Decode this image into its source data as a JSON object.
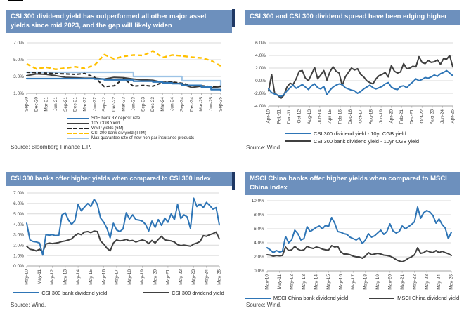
{
  "colors": {
    "header_bg": "#6d90bd",
    "header_text": "#ffffff",
    "grid": "#d9d9d9",
    "axis_line": "#a6a6a6",
    "axis_text": "#404040",
    "blue": "#2e75b6",
    "dark_gray": "#404040",
    "black": "#262626",
    "yellow": "#ffc000",
    "light_blue": "#9dc3e6",
    "edge_mark": "#1f3864"
  },
  "panels": [
    {
      "title": "CSI 300 dividend yield has outperformed all other major asset yields since mid 2023, and the gap will likely widen",
      "source": "Source: Bloomberg Finance L.P.",
      "chart_data": {
        "type": "line",
        "grid": true,
        "legend_position": "bottom-vertical",
        "ylim": [
          1,
          7
        ],
        "yticks": [
          {
            "v": 1,
            "label": "1.0%"
          },
          {
            "v": 3,
            "label": "3.0%"
          },
          {
            "v": 5,
            "label": "5.0%"
          },
          {
            "v": 7,
            "label": "7.0%"
          }
        ],
        "x_labels": [
          "Sep-20",
          "Dec-20",
          "Mar-21",
          "Jun-21",
          "Sep-21",
          "Dec-21",
          "Mar-22",
          "Jun-22",
          "Sep-22",
          "Dec-22",
          "Mar-23",
          "Jun-23",
          "Sep-23",
          "Dec-23",
          "Mar-24",
          "Jun-24",
          "Sep-24",
          "Dec-24",
          "Mar-25",
          "Jun-25",
          "Sep-25"
        ],
        "series": [
          {
            "name": "SOE bank 3Y deposit rate",
            "color": "#2e75b6",
            "width": 2.2,
            "dash": null,
            "step": true,
            "z": 4,
            "values": [
              2.75,
              2.75,
              2.75,
              2.75,
              2.75,
              2.75,
              2.75,
              2.7,
              2.6,
              2.6,
              2.6,
              2.45,
              2.45,
              2.35,
              2.25,
              2.15,
              1.95,
              1.95,
              1.75,
              1.45,
              1.3
            ]
          },
          {
            "name": "10Y CGB Yield",
            "color": "#404040",
            "width": 2.0,
            "dash": null,
            "step": false,
            "z": 2,
            "values": [
              3.1,
              3.3,
              3.25,
              3.1,
              2.9,
              2.85,
              2.8,
              2.8,
              2.7,
              2.9,
              2.85,
              2.7,
              2.6,
              2.55,
              2.3,
              2.3,
              2.1,
              1.7,
              1.85,
              1.65,
              1.8
            ]
          },
          {
            "name": "WMP yields (6M)",
            "color": "#262626",
            "width": 2.0,
            "dash": "5,3",
            "step": false,
            "z": 3,
            "values": [
              3.5,
              3.45,
              3.4,
              3.35,
              3.3,
              3.25,
              3.35,
              2.9,
              1.8,
              1.9,
              2.75,
              1.85,
              1.95,
              1.85,
              2.3,
              2.35,
              2.2,
              1.95,
              1.9,
              1.8,
              1.85
            ]
          },
          {
            "name": "CSI 300 bank div yield (TTM)",
            "color": "#ffc000",
            "width": 2.4,
            "dash": "6,4",
            "step": false,
            "z": 5,
            "values": [
              4.5,
              3.9,
              4.1,
              3.85,
              4.0,
              4.15,
              3.95,
              4.35,
              5.6,
              5.1,
              5.4,
              5.55,
              5.5,
              6.05,
              5.25,
              5.55,
              5.45,
              5.3,
              5.2,
              4.9,
              4.25
            ]
          },
          {
            "name": "Max guarantee rate of new non-par insurance products",
            "color": "#9dc3e6",
            "width": 2.2,
            "dash": null,
            "step": true,
            "z": 1,
            "values": [
              3.5,
              3.5,
              3.5,
              3.5,
              3.5,
              3.5,
              3.5,
              3.5,
              3.5,
              3.5,
              3.5,
              3.0,
              3.0,
              3.0,
              3.0,
              3.0,
              2.5,
              2.5,
              2.5,
              2.5,
              2.0
            ]
          }
        ]
      }
    },
    {
      "title": "CSI 300 and CSI 300 dividend spread have been edging higher",
      "source": "Source: Wind.",
      "chart_data": {
        "type": "line",
        "grid": true,
        "legend_position": "bottom-vertical",
        "ylim": [
          -4,
          6
        ],
        "yticks": [
          {
            "v": -4,
            "label": "-4.0%"
          },
          {
            "v": -2,
            "label": "-2.0%"
          },
          {
            "v": 0,
            "label": "0.0%"
          },
          {
            "v": 2,
            "label": "2.0%"
          },
          {
            "v": 4,
            "label": "4.0%"
          },
          {
            "v": 6,
            "label": "6.0%"
          }
        ],
        "x_labels": [
          "Apr-10",
          "Feb-11",
          "Dec-11",
          "Oct-12",
          "Aug-13",
          "Jun-14",
          "Apr-15",
          "Feb-16",
          "Dec-16",
          "Oct-17",
          "Aug-18",
          "Jun-19",
          "Apr-20",
          "Feb-21",
          "Dec-21",
          "Oct-22",
          "Aug-23",
          "Jun-24",
          "Apr-25"
        ],
        "series": [
          {
            "name": "CSI 300 dividend yield - 10yr CGB yield",
            "color": "#2e75b6",
            "width": 2.0,
            "dash": null,
            "step": false,
            "z": 2,
            "values": [
              -1.3,
              -1.9,
              -2.1,
              -2.3,
              -2.5,
              -2.2,
              -1.6,
              -1.1,
              -0.7,
              -1.2,
              -0.9,
              -0.6,
              -1.0,
              -1.4,
              -0.8,
              -0.5,
              -1.1,
              -1.3,
              -0.9,
              -2.2,
              -1.5,
              -1.0,
              -0.7,
              -0.5,
              -0.6,
              -1.1,
              -1.3,
              -1.5,
              -1.6,
              -2.0,
              -1.7,
              -1.3,
              -1.0,
              -0.7,
              -1.1,
              -1.3,
              -1.1,
              -0.9,
              -0.5,
              -0.3,
              -1.0,
              -1.3,
              -1.4,
              -0.9,
              -0.8,
              -1.1,
              -0.6,
              -0.2,
              0.3,
              0.0,
              0.2,
              0.5,
              0.4,
              0.6,
              0.9,
              0.7,
              1.1,
              1.3,
              1.6,
              1.2,
              0.8
            ]
          },
          {
            "name": "CSI 300 bank dividend yield - 10yr CGB yield",
            "color": "#404040",
            "width": 2.0,
            "dash": null,
            "step": false,
            "z": 1,
            "values": [
              -1.6,
              1.0,
              -2.0,
              -2.3,
              -2.8,
              -2.3,
              -1.0,
              -0.4,
              -0.6,
              0.3,
              1.5,
              1.6,
              0.4,
              0.0,
              1.0,
              2.1,
              0.3,
              0.9,
              1.6,
              0.1,
              1.4,
              2.2,
              1.5,
              1.2,
              -0.8,
              0.6,
              1.3,
              2.0,
              1.7,
              1.9,
              1.0,
              0.6,
              0.0,
              -0.3,
              -0.5,
              0.3,
              0.8,
              1.0,
              1.3,
              0.6,
              2.4,
              1.5,
              1.2,
              1.4,
              2.7,
              1.9,
              2.0,
              2.3,
              2.2,
              3.8,
              2.9,
              2.7,
              3.2,
              2.9,
              3.0,
              3.3,
              2.6,
              3.5,
              3.4,
              4.0,
              2.2
            ]
          }
        ]
      }
    },
    {
      "title": "CSI 300 banks offer higher yields when compared to CSI 300 index",
      "source": "Source: Wind.",
      "chart_data": {
        "type": "line",
        "grid": true,
        "legend_position": "bottom-horizontal",
        "ylim": [
          0,
          7
        ],
        "yticks": [
          {
            "v": 0,
            "label": "0.0%"
          },
          {
            "v": 1,
            "label": "1.0%"
          },
          {
            "v": 2,
            "label": "2.0%"
          },
          {
            "v": 3,
            "label": "3.0%"
          },
          {
            "v": 4,
            "label": "4.0%"
          },
          {
            "v": 5,
            "label": "5.0%"
          },
          {
            "v": 6,
            "label": "6.0%"
          },
          {
            "v": 7,
            "label": "7.0%"
          }
        ],
        "x_labels": [
          "May-10",
          "May-11",
          "May-12",
          "May-13",
          "May-14",
          "May-15",
          "May-16",
          "May-17",
          "May-18",
          "May-19",
          "May-20",
          "May-21",
          "May-22",
          "May-23",
          "May-24",
          "May-25"
        ],
        "series": [
          {
            "name": "CSI 300 bank dividend yield",
            "color": "#2e75b6",
            "width": 2.0,
            "dash": null,
            "step": false,
            "z": 2,
            "values": [
              4.1,
              2.5,
              2.35,
              2.3,
              2.2,
              1.05,
              3.0,
              2.95,
              3.0,
              2.9,
              2.95,
              4.9,
              5.1,
              4.4,
              4.0,
              4.35,
              5.9,
              5.3,
              5.65,
              6.0,
              5.7,
              6.4,
              5.9,
              4.6,
              4.2,
              3.6,
              2.7,
              4.1,
              3.45,
              3.3,
              3.55,
              5.1,
              4.5,
              4.9,
              4.45,
              4.4,
              4.3,
              4.0,
              3.35,
              4.3,
              3.7,
              4.45,
              3.9,
              4.6,
              4.2,
              5.0,
              4.45,
              5.9,
              4.55,
              4.9,
              4.7,
              3.6,
              6.5,
              5.7,
              5.95,
              5.6,
              6.1,
              5.8,
              5.45,
              5.6,
              3.95
            ]
          },
          {
            "name": "CSI 300 dividend yield",
            "color": "#404040",
            "width": 2.0,
            "dash": null,
            "step": false,
            "z": 1,
            "values": [
              1.9,
              1.6,
              1.55,
              1.45,
              1.6,
              1.35,
              2.1,
              2.2,
              2.15,
              2.2,
              2.25,
              2.35,
              2.4,
              2.5,
              2.6,
              2.9,
              3.1,
              3.0,
              3.25,
              3.3,
              3.2,
              3.35,
              3.3,
              2.4,
              2.1,
              1.7,
              1.45,
              2.2,
              2.5,
              2.4,
              2.45,
              2.55,
              2.4,
              2.45,
              2.3,
              2.4,
              2.5,
              2.4,
              2.15,
              2.45,
              2.2,
              2.55,
              2.85,
              2.5,
              2.45,
              2.4,
              2.3,
              2.05,
              1.95,
              2.0,
              1.95,
              1.9,
              2.1,
              2.2,
              2.35,
              2.9,
              2.85,
              3.0,
              3.1,
              3.25,
              2.6
            ]
          }
        ]
      }
    },
    {
      "title": "MSCI China banks offer higher yields when compared to MSCI China index",
      "source": "Source: Wind.",
      "chart_data": {
        "type": "line",
        "grid": true,
        "legend_position": "bottom-horizontal",
        "ylim": [
          0,
          10
        ],
        "yticks": [
          {
            "v": 0,
            "label": "0.0%"
          },
          {
            "v": 2,
            "label": "2.0%"
          },
          {
            "v": 4,
            "label": "4.0%"
          },
          {
            "v": 6,
            "label": "6.0%"
          },
          {
            "v": 8,
            "label": "8.0%"
          },
          {
            "v": 10,
            "label": "10.0%"
          }
        ],
        "x_labels": [
          "May-10",
          "May-11",
          "May-12",
          "May-13",
          "May-14",
          "May-15",
          "May-16",
          "May-17",
          "May-18",
          "May-19",
          "May-20",
          "May-21",
          "May-22",
          "May-23",
          "May-24",
          "May-25"
        ],
        "series": [
          {
            "name": "MSCI China bank dividend yield",
            "color": "#2e75b6",
            "width": 2.0,
            "dash": null,
            "step": false,
            "z": 2,
            "values": [
              3.3,
              3.0,
              2.6,
              2.9,
              2.7,
              2.8,
              4.9,
              4.0,
              4.4,
              5.8,
              5.3,
              4.4,
              4.6,
              6.3,
              5.6,
              5.9,
              6.2,
              6.4,
              6.0,
              6.5,
              6.3,
              7.6,
              6.8,
              5.6,
              5.5,
              5.3,
              5.2,
              4.8,
              4.6,
              4.4,
              4.7,
              3.9,
              4.4,
              5.3,
              4.8,
              5.0,
              5.4,
              5.8,
              5.2,
              5.6,
              6.7,
              5.7,
              5.4,
              5.6,
              6.4,
              6.0,
              6.3,
              6.6,
              7.0,
              9.1,
              7.5,
              8.3,
              8.6,
              8.4,
              7.9,
              6.8,
              7.4,
              6.6,
              6.1,
              4.6,
              5.5
            ]
          },
          {
            "name": "MSCI China dividend yield",
            "color": "#404040",
            "width": 2.0,
            "dash": null,
            "step": false,
            "z": 1,
            "values": [
              2.3,
              2.25,
              2.1,
              2.2,
              2.15,
              2.2,
              3.4,
              2.9,
              3.0,
              3.5,
              3.1,
              2.9,
              3.0,
              3.5,
              3.3,
              3.2,
              3.4,
              3.3,
              3.1,
              3.0,
              2.95,
              3.6,
              3.4,
              3.5,
              2.7,
              2.4,
              2.4,
              2.3,
              2.1,
              2.0,
              2.0,
              1.8,
              2.1,
              2.6,
              2.3,
              2.4,
              2.5,
              2.4,
              2.25,
              2.2,
              2.1,
              1.9,
              1.6,
              1.4,
              1.3,
              1.5,
              1.8,
              2.0,
              2.3,
              3.3,
              2.5,
              2.6,
              2.9,
              2.7,
              2.6,
              2.9,
              2.6,
              2.8,
              2.6,
              2.45,
              2.2
            ]
          }
        ]
      }
    }
  ]
}
